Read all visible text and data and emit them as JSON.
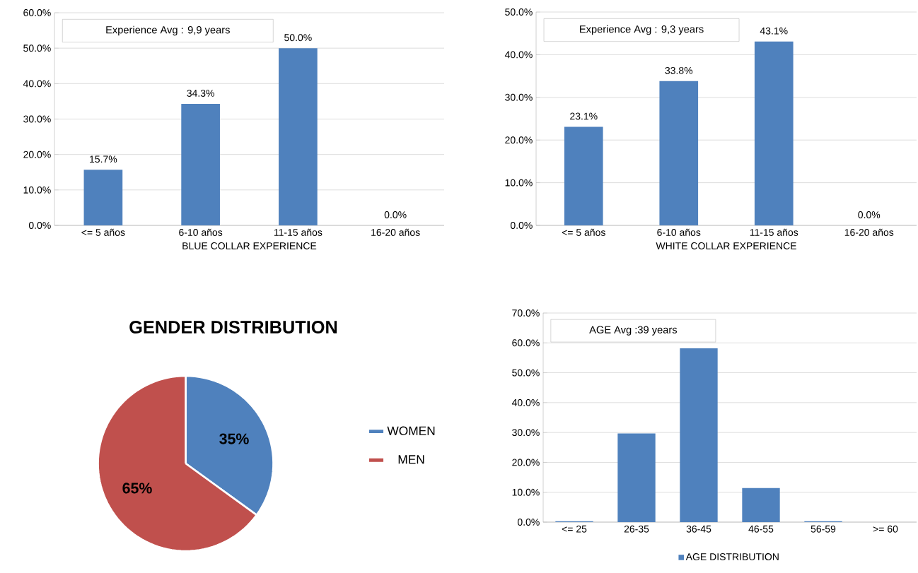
{
  "chart_data": [
    {
      "type": "bar",
      "xlabel": "BLUE COLLAR EXPERIENCE",
      "annotations": [
        "Experience Avg : 9,9 years"
      ],
      "categories": [
        "<= 5 años",
        "6-10 años",
        "11-15 años",
        "16-20 años"
      ],
      "values": [
        15.7,
        34.3,
        50.0,
        0.0
      ],
      "value_labels": [
        "15.7%",
        "34.3%",
        "50.0%",
        "0.0%"
      ],
      "color": "#4f81bd",
      "ylim": [
        0,
        60
      ],
      "yticks": [
        {
          "value": 0,
          "label": "0.0%"
        },
        {
          "value": 10,
          "label": "10.0%"
        },
        {
          "value": 20,
          "label": "20.0%"
        },
        {
          "value": 30,
          "label": "30.0%"
        },
        {
          "value": 40,
          "label": "40.0%"
        },
        {
          "value": 50,
          "label": "50.0%"
        },
        {
          "value": 60,
          "label": "60.0%"
        }
      ],
      "grid": "y"
    },
    {
      "type": "bar",
      "xlabel": "WHITE COLLAR EXPERIENCE",
      "annotations": [
        "Experience Avg : 9,3 years"
      ],
      "categories": [
        "<= 5 años",
        "6-10 años",
        "11-15 años",
        "16-20 años"
      ],
      "values": [
        23.1,
        33.8,
        43.1,
        0.0
      ],
      "value_labels": [
        "23.1%",
        "33.8%",
        "43.1%",
        "0.0%"
      ],
      "color": "#4f81bd",
      "ylim": [
        0,
        50
      ],
      "yticks": [
        {
          "value": 0,
          "label": "0.0%"
        },
        {
          "value": 10,
          "label": "10.0%"
        },
        {
          "value": 20,
          "label": "20.0%"
        },
        {
          "value": 30,
          "label": "30.0%"
        },
        {
          "value": 40,
          "label": "40.0%"
        },
        {
          "value": 50,
          "label": "50.0%"
        }
      ],
      "grid": "y"
    },
    {
      "type": "pie",
      "title": "GENDER DISTRIBUTION",
      "categories": [
        "WOMEN",
        "MEN"
      ],
      "values": [
        35,
        65
      ],
      "value_labels": [
        "35%",
        "65%"
      ],
      "colors": [
        "#4f81bd",
        "#c0504d"
      ],
      "legend": "right"
    },
    {
      "type": "bar",
      "annotations": [
        "AGE Avg :39 years"
      ],
      "categories": [
        "<= 25",
        "26-35",
        "36-45",
        "46-55",
        "56-59",
        ">= 60"
      ],
      "series": [
        {
          "name": "AGE DISTRIBUTION",
          "color": "#4f81bd",
          "values": [
            0.3,
            29.7,
            58.2,
            11.4,
            0.3,
            0.0
          ]
        }
      ],
      "ylim": [
        0,
        70
      ],
      "yticks": [
        {
          "value": 0,
          "label": "0.0%"
        },
        {
          "value": 10,
          "label": "10.0%"
        },
        {
          "value": 20,
          "label": "20.0%"
        },
        {
          "value": 30,
          "label": "30.0%"
        },
        {
          "value": 40,
          "label": "40.0%"
        },
        {
          "value": 50,
          "label": "50.0%"
        },
        {
          "value": 60,
          "label": "60.0%"
        },
        {
          "value": 70,
          "label": "70.0%"
        }
      ],
      "grid": "y",
      "legend": "bottom"
    }
  ]
}
